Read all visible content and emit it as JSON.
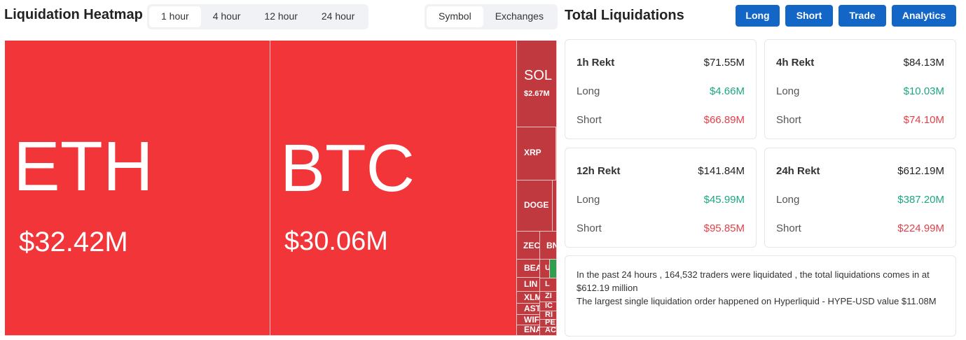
{
  "header": {
    "title": "Liquidation Heatmap",
    "time_tabs": [
      "1 hour",
      "4 hour",
      "12 hour",
      "24 hour"
    ],
    "group_tabs": [
      "Symbol",
      "Exchanges"
    ]
  },
  "heatmap": {
    "tiles": [
      {
        "symbol": "ETH",
        "value": "$32.42M"
      },
      {
        "symbol": "BTC",
        "value": "$30.06M"
      },
      {
        "symbol": "SOL",
        "value": "$2.67M"
      },
      {
        "symbol": "XRP"
      },
      {
        "symbol": "DOGE"
      },
      {
        "symbol": "ZEC"
      },
      {
        "symbol": "BN"
      },
      {
        "symbol": "BEA"
      },
      {
        "symbol": "LIN"
      },
      {
        "symbol": "XLM"
      },
      {
        "symbol": "AST"
      },
      {
        "symbol": "WIF"
      },
      {
        "symbol": "ENA"
      },
      {
        "symbol": "U"
      },
      {
        "symbol": "L"
      },
      {
        "symbol": "ZI"
      },
      {
        "symbol": "IC"
      },
      {
        "symbol": "RI"
      },
      {
        "symbol": "PE"
      },
      {
        "symbol": "AC"
      }
    ]
  },
  "summary": {
    "title": "Total Liquidations",
    "buttons": [
      "Long",
      "Short",
      "Trade",
      "Analytics"
    ],
    "cards": [
      {
        "label": "1h Rekt",
        "total": "$71.55M",
        "rows": [
          {
            "label": "Long",
            "value": "$4.66M"
          },
          {
            "label": "Short",
            "value": "$66.89M"
          }
        ]
      },
      {
        "label": "4h Rekt",
        "total": "$84.13M",
        "rows": [
          {
            "label": "Long",
            "value": "$10.03M"
          },
          {
            "label": "Short",
            "value": "$74.10M"
          }
        ]
      },
      {
        "label": "12h Rekt",
        "total": "$141.84M",
        "rows": [
          {
            "label": "Long",
            "value": "$45.99M"
          },
          {
            "label": "Short",
            "value": "$95.85M"
          }
        ]
      },
      {
        "label": "24h Rekt",
        "total": "$612.19M",
        "rows": [
          {
            "label": "Long",
            "value": "$387.20M"
          },
          {
            "label": "Short",
            "value": "$224.99M"
          }
        ]
      }
    ],
    "notes": [
      "In the past 24 hours , 164,532 traders were liquidated , the total liquidations comes in at $612.19 million",
      "The largest single liquidation order happened on Hyperliquid - HYPE-USD value $11.08M"
    ]
  }
}
